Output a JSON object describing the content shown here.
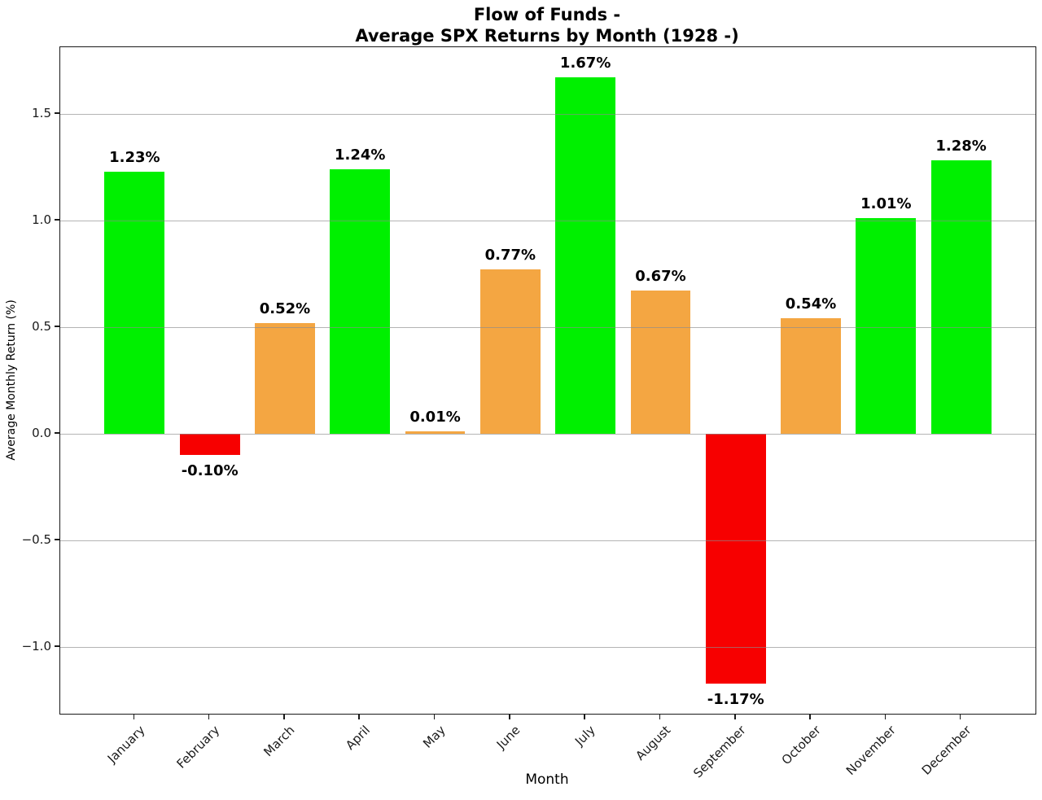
{
  "chart_data": {
    "type": "bar",
    "title": "Flow of Funds -\nAverage SPX Returns by Month (1928 -)",
    "title_lines": [
      "Flow of Funds -",
      "Average SPX Returns by Month (1928 -)"
    ],
    "xlabel": "Month",
    "ylabel": "Average Monthly Return (%)",
    "categories": [
      "January",
      "February",
      "March",
      "April",
      "May",
      "June",
      "July",
      "August",
      "September",
      "October",
      "November",
      "December"
    ],
    "values": [
      1.23,
      -0.1,
      0.52,
      1.24,
      0.01,
      0.77,
      1.67,
      0.67,
      -1.17,
      0.54,
      1.01,
      1.28
    ],
    "value_labels": [
      "1.23%",
      "-0.10%",
      "0.52%",
      "1.24%",
      "0.01%",
      "0.77%",
      "1.67%",
      "0.67%",
      "-1.17%",
      "0.54%",
      "1.01%",
      "1.28%"
    ],
    "bar_colors": [
      "#00f000",
      "#f70000",
      "#f4a642",
      "#00f000",
      "#f4a642",
      "#f4a642",
      "#00f000",
      "#f4a642",
      "#f70000",
      "#f4a642",
      "#00f000",
      "#00f000"
    ],
    "ylim": [
      -1.312,
      1.812
    ],
    "yticks": [
      {
        "value": 1.5,
        "label": "1.5"
      },
      {
        "value": 1.0,
        "label": "1.0"
      },
      {
        "value": 0.5,
        "label": "0.5"
      },
      {
        "value": 0.0,
        "label": "0.0"
      },
      {
        "value": -0.5,
        "label": "−0.5"
      },
      {
        "value": -1.0,
        "label": "−1.0"
      }
    ],
    "grid": true,
    "grid_on_top": true,
    "legend_position": "none",
    "bar_width_fraction": 0.8
  }
}
